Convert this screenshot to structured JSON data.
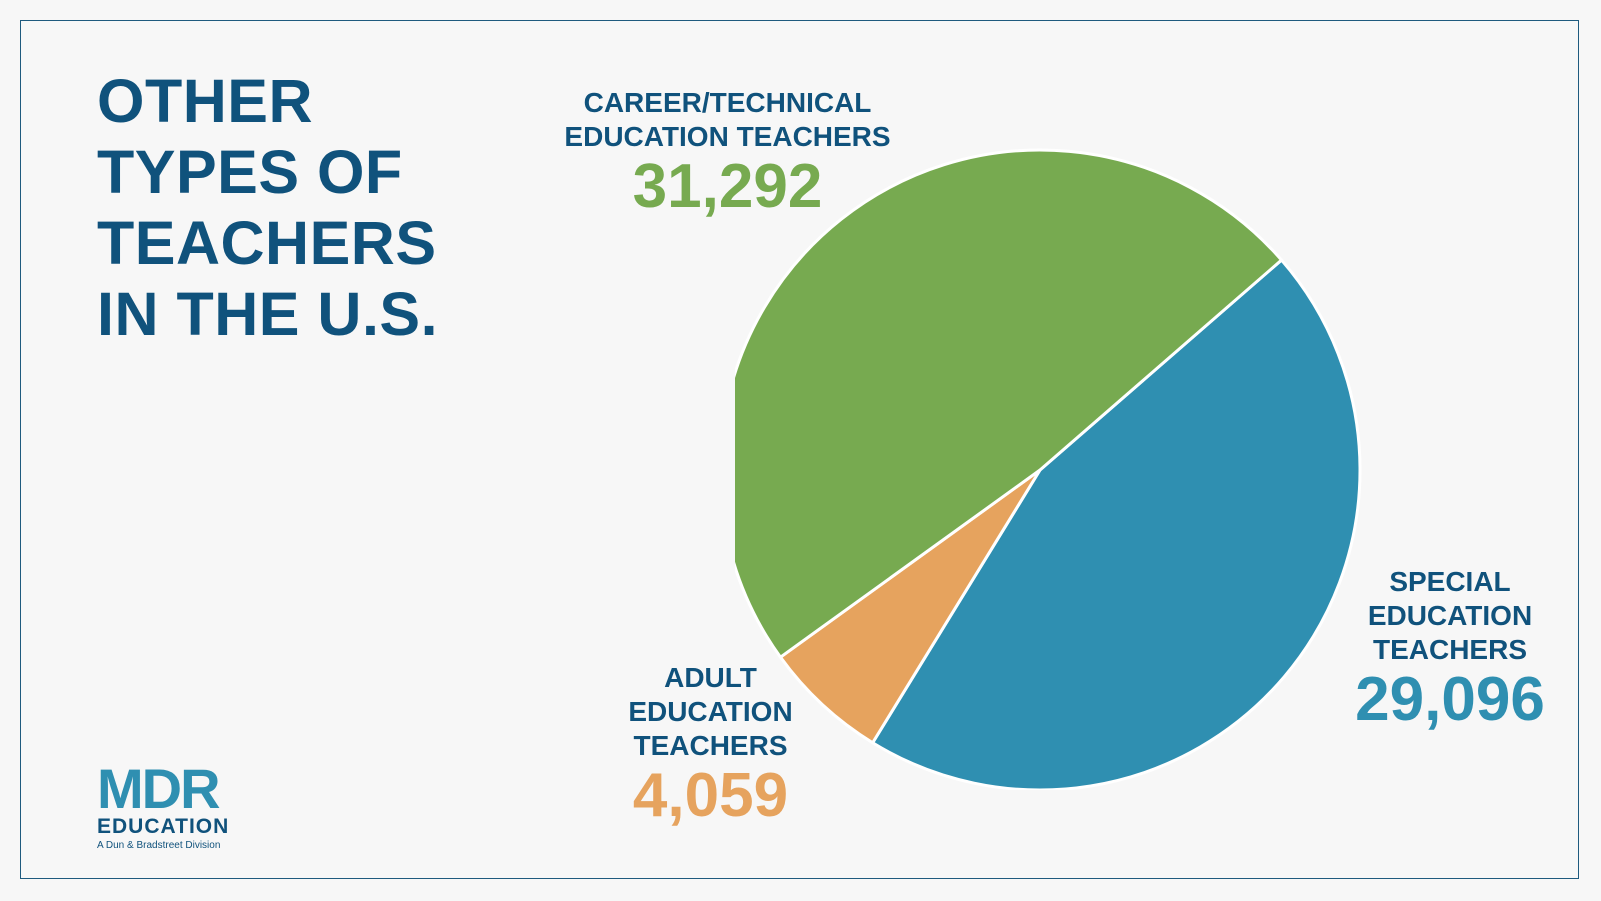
{
  "title_lines": [
    "OTHER",
    "TYPES OF",
    "TEACHERS",
    "IN THE U.S."
  ],
  "colors": {
    "career": "#77aa50",
    "special": "#2f8fb1",
    "adult": "#e6a35e",
    "text": "#10527c"
  },
  "labels": {
    "career": {
      "lines": [
        "CAREER/TECHNICAL",
        "EDUCATION TEACHERS"
      ],
      "value": "31,292"
    },
    "special": {
      "lines": [
        "SPECIAL",
        "EDUCATION",
        "TEACHERS"
      ],
      "value": "29,096"
    },
    "adult": {
      "lines": [
        "ADULT",
        "EDUCATION",
        "TEACHERS"
      ],
      "value": "4,059"
    }
  },
  "logo": {
    "mark": "MDR",
    "name": "EDUCATION",
    "tagline": "A Dun & Bradstreet Division"
  },
  "chart_data": {
    "type": "pie",
    "title": "OTHER TYPES OF TEACHERS IN THE U.S.",
    "categories": [
      "CAREER/TECHNICAL EDUCATION TEACHERS",
      "SPECIAL EDUCATION TEACHERS",
      "ADULT EDUCATION TEACHERS"
    ],
    "values": [
      31292,
      29096,
      4059
    ],
    "colors": [
      "#77aa50",
      "#2f8fb1",
      "#e6a35e"
    ],
    "legend": "none"
  }
}
